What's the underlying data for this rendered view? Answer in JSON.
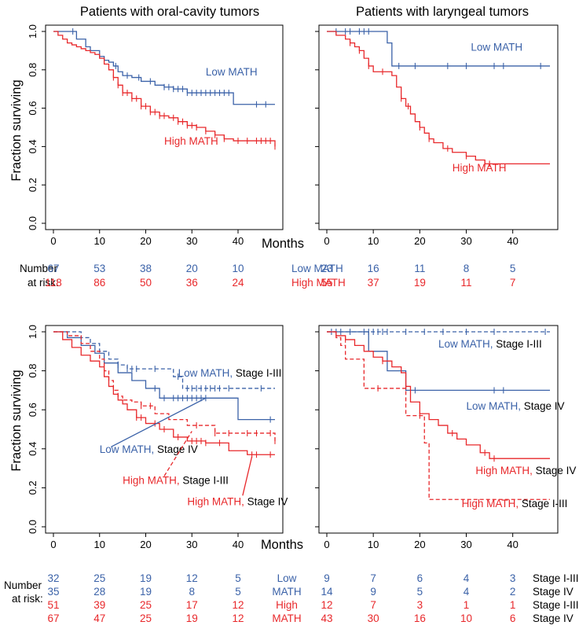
{
  "colors": {
    "low": "#3b62a8",
    "high": "#e8282b",
    "axis": "#000000"
  },
  "labels": {
    "ylabel": "Fraction surviving",
    "xlabel": "Months",
    "number_at_risk": [
      "Number",
      "at risk:"
    ],
    "low_math": "Low MATH",
    "high_math": "High MATH",
    "low_split": [
      "Low",
      "MATH"
    ],
    "high_split": [
      "High",
      "MATH"
    ],
    "stage_1_3": "Stage I-III",
    "stage_4": "Stage IV"
  },
  "x_ticks": [
    0,
    10,
    20,
    30,
    40
  ],
  "y_ticks": [
    "0.0",
    "0.2",
    "0.4",
    "0.6",
    "0.8",
    "1.0"
  ],
  "chart_data": [
    {
      "type": "line",
      "title": "Patients with oral-cavity tumors",
      "xlabel": "Months",
      "ylabel": "Fraction surviving",
      "xlim": [
        0,
        48
      ],
      "ylim": [
        0,
        1
      ],
      "series": [
        {
          "name": "Low MATH",
          "group": "low",
          "dashed": false,
          "x": [
            0,
            4,
            5,
            7,
            8,
            10,
            11,
            12,
            13,
            14,
            15,
            17,
            19,
            22,
            24,
            26,
            29,
            32,
            36,
            39,
            48
          ],
          "y": [
            1.0,
            1.0,
            0.96,
            0.92,
            0.9,
            0.87,
            0.85,
            0.84,
            0.82,
            0.79,
            0.77,
            0.76,
            0.74,
            0.72,
            0.71,
            0.7,
            0.68,
            0.68,
            0.68,
            0.62,
            0.62
          ],
          "censor_x": [
            4.2,
            13.5,
            16,
            18.5,
            21,
            24,
            25,
            26,
            27,
            28,
            29,
            30,
            31,
            32,
            33,
            34,
            35,
            36,
            37,
            38,
            44,
            46
          ]
        },
        {
          "name": "High MATH",
          "group": "high",
          "dashed": false,
          "x": [
            0,
            1,
            2,
            3,
            4,
            5,
            6,
            7,
            8,
            9,
            10,
            11,
            12,
            13,
            14,
            15,
            17,
            19,
            21,
            23,
            25,
            27,
            29,
            31,
            33,
            35,
            37,
            39,
            48
          ],
          "y": [
            1.0,
            0.98,
            0.96,
            0.94,
            0.93,
            0.92,
            0.91,
            0.9,
            0.89,
            0.88,
            0.86,
            0.83,
            0.8,
            0.76,
            0.72,
            0.68,
            0.65,
            0.61,
            0.58,
            0.56,
            0.55,
            0.53,
            0.51,
            0.5,
            0.48,
            0.46,
            0.44,
            0.43,
            0.4
          ],
          "censor_x": [
            13,
            14,
            15,
            16,
            17,
            18,
            19,
            20,
            21,
            22,
            23,
            24,
            26,
            27,
            28,
            29,
            30,
            31,
            33,
            35,
            37,
            40,
            42,
            44,
            45,
            46,
            47,
            48
          ]
        }
      ],
      "annotations": [
        {
          "text": "Low MATH",
          "group": "low",
          "x": 33,
          "y": 0.77
        },
        {
          "text": "High MATH",
          "group": "high",
          "x": 24,
          "y": 0.41
        }
      ],
      "at_risk": {
        "x": [
          0,
          10,
          20,
          30,
          40
        ],
        "rows": [
          {
            "label": "Low MATH",
            "group": "low",
            "values": [
              "67",
              "53",
              "38",
              "20",
              "10"
            ]
          },
          {
            "label": "High MATH",
            "group": "high",
            "values": [
              "118",
              "86",
              "50",
              "36",
              "24"
            ]
          }
        ]
      }
    },
    {
      "type": "line",
      "title": "Patients with laryngeal tumors",
      "xlabel": "Months",
      "ylabel": "Fraction surviving",
      "xlim": [
        0,
        48
      ],
      "ylim": [
        0,
        1
      ],
      "series": [
        {
          "name": "Low MATH",
          "group": "low",
          "dashed": false,
          "x": [
            0,
            10,
            13,
            14,
            48
          ],
          "y": [
            1.0,
            1.0,
            0.94,
            0.82,
            0.82
          ],
          "censor_x": [
            2,
            4,
            5,
            7,
            8,
            9,
            15.5,
            19,
            26,
            30,
            36,
            38,
            46
          ]
        },
        {
          "name": "High MATH",
          "group": "high",
          "dashed": false,
          "x": [
            0,
            2,
            4,
            5,
            6,
            7,
            8,
            9,
            10,
            14,
            15,
            16,
            17,
            18,
            19,
            20,
            21,
            22,
            23,
            25,
            27,
            30,
            32,
            34,
            48
          ],
          "y": [
            1.0,
            0.98,
            0.96,
            0.94,
            0.92,
            0.9,
            0.86,
            0.82,
            0.79,
            0.77,
            0.71,
            0.65,
            0.61,
            0.57,
            0.53,
            0.5,
            0.47,
            0.44,
            0.42,
            0.39,
            0.37,
            0.35,
            0.33,
            0.31,
            0.31
          ],
          "censor_x": [
            5,
            7,
            9,
            12,
            16,
            17.5,
            20,
            22,
            26,
            30,
            34,
            35
          ]
        }
      ],
      "annotations": [
        {
          "text": "Low MATH",
          "group": "low",
          "x": 31,
          "y": 0.9
        },
        {
          "text": "High MATH",
          "group": "high",
          "x": 27,
          "y": 0.27
        }
      ],
      "at_risk": {
        "x": [
          0,
          10,
          20,
          30,
          40
        ],
        "rows": [
          {
            "label": "",
            "group": "low",
            "values": [
              "23",
              "16",
              "11",
              "8",
              "5"
            ]
          },
          {
            "label": "",
            "group": "high",
            "values": [
              "55",
              "37",
              "19",
              "11",
              "7"
            ]
          }
        ]
      }
    },
    {
      "type": "line",
      "title": "",
      "xlabel": "Months",
      "ylabel": "Fraction surviving",
      "xlim": [
        0,
        48
      ],
      "ylim": [
        0,
        1
      ],
      "series": [
        {
          "name": "Low MATH, Stage I-III",
          "group": "low",
          "dashed": true,
          "x": [
            0,
            4,
            6,
            8,
            10,
            12,
            14,
            16,
            19,
            22,
            26,
            28,
            48
          ],
          "y": [
            1.0,
            1.0,
            0.97,
            0.94,
            0.9,
            0.86,
            0.83,
            0.81,
            0.81,
            0.81,
            0.77,
            0.71,
            0.71
          ],
          "censor_x": [
            14,
            16,
            17,
            18,
            22,
            27,
            29,
            30,
            31,
            32,
            33,
            34,
            35,
            36,
            38,
            45
          ]
        },
        {
          "name": "Low MATH, Stage IV",
          "group": "low",
          "dashed": false,
          "x": [
            0,
            3,
            6,
            9,
            11,
            14,
            17,
            20,
            23,
            40,
            48
          ],
          "y": [
            1.0,
            0.97,
            0.93,
            0.89,
            0.84,
            0.79,
            0.75,
            0.71,
            0.66,
            0.55,
            0.55
          ],
          "censor_x": [
            22,
            24,
            26,
            27,
            28,
            29,
            30,
            31,
            32,
            33,
            47
          ]
        },
        {
          "name": "High MATH, Stage I-III",
          "group": "high",
          "dashed": true,
          "x": [
            0,
            3,
            6,
            8,
            10,
            11,
            12,
            13,
            14,
            15,
            17,
            19,
            22,
            25,
            29,
            35,
            48
          ],
          "y": [
            1.0,
            0.98,
            0.94,
            0.9,
            0.86,
            0.8,
            0.75,
            0.7,
            0.67,
            0.65,
            0.64,
            0.62,
            0.58,
            0.55,
            0.52,
            0.48,
            0.44
          ],
          "censor_x": [
            19,
            21,
            31,
            35,
            38,
            42,
            44,
            47,
            48
          ]
        },
        {
          "name": "High MATH, Stage IV",
          "group": "high",
          "dashed": false,
          "x": [
            0,
            2,
            4,
            6,
            8,
            10,
            11,
            12,
            13,
            14,
            15,
            16,
            18,
            20,
            23,
            26,
            29,
            33,
            38,
            42,
            48
          ],
          "y": [
            1.0,
            0.96,
            0.92,
            0.88,
            0.85,
            0.82,
            0.77,
            0.72,
            0.68,
            0.65,
            0.63,
            0.6,
            0.56,
            0.53,
            0.5,
            0.46,
            0.44,
            0.43,
            0.39,
            0.37,
            0.37
          ],
          "censor_x": [
            18,
            19,
            22,
            24,
            27,
            30,
            31,
            32,
            33,
            36,
            43,
            44,
            47
          ]
        }
      ],
      "annotations": [
        {
          "text": "Low MATH, ",
          "tail": "Stage I-III",
          "group": "low",
          "x": 27,
          "y": 0.77
        },
        {
          "text": "Low MATH, ",
          "tail": "Stage IV",
          "group": "low",
          "x": 10,
          "y": 0.38
        },
        {
          "text": "High MATH, ",
          "tail": "Stage I-III",
          "group": "high",
          "x": 15,
          "y": 0.22
        },
        {
          "text": "High MATH, ",
          "tail": "Stage IV",
          "group": "high",
          "x": 29,
          "y": 0.11
        }
      ],
      "at_risk": {
        "x": [
          0,
          10,
          20,
          30,
          40
        ],
        "rows": [
          {
            "label": "",
            "group": "low",
            "values": [
              "32",
              "25",
              "19",
              "12",
              "5"
            ]
          },
          {
            "label": "",
            "group": "low",
            "values": [
              "35",
              "28",
              "19",
              "8",
              "5"
            ]
          },
          {
            "label": "",
            "group": "high",
            "values": [
              "51",
              "39",
              "25",
              "17",
              "12"
            ]
          },
          {
            "label": "",
            "group": "high",
            "values": [
              "67",
              "47",
              "25",
              "19",
              "12"
            ]
          }
        ]
      }
    },
    {
      "type": "line",
      "title": "",
      "xlabel": "Months",
      "ylabel": "Fraction surviving",
      "xlim": [
        0,
        48
      ],
      "ylim": [
        0,
        1
      ],
      "series": [
        {
          "name": "Low MATH, Stage I-III",
          "group": "low",
          "dashed": true,
          "x": [
            0,
            48
          ],
          "y": [
            1.0,
            1.0
          ],
          "censor_x": [
            1,
            3,
            5,
            8,
            9,
            10,
            11,
            12,
            13,
            17,
            21,
            25,
            30,
            36,
            47
          ]
        },
        {
          "name": "Low MATH, Stage IV",
          "group": "low",
          "dashed": false,
          "x": [
            0,
            9,
            13,
            17,
            48
          ],
          "y": [
            1.0,
            0.9,
            0.8,
            0.7,
            0.7
          ],
          "censor_x": [
            2,
            19,
            36,
            38
          ]
        },
        {
          "name": "High MATH, Stage I-III",
          "group": "high",
          "dashed": true,
          "x": [
            0,
            2,
            3,
            4,
            8,
            13,
            16,
            17,
            21,
            22,
            48
          ],
          "y": [
            1.0,
            0.97,
            0.93,
            0.86,
            0.71,
            0.71,
            0.71,
            0.57,
            0.43,
            0.14,
            0.14
          ],
          "censor_x": [
            11,
            20
          ]
        },
        {
          "name": "High MATH, Stage IV",
          "group": "high",
          "dashed": false,
          "x": [
            0,
            2,
            4,
            6,
            8,
            10,
            12,
            14,
            16,
            17,
            18,
            20,
            22,
            24,
            26,
            28,
            30,
            33,
            35,
            48
          ],
          "y": [
            1.0,
            0.98,
            0.96,
            0.93,
            0.9,
            0.87,
            0.85,
            0.82,
            0.79,
            0.72,
            0.64,
            0.58,
            0.55,
            0.52,
            0.48,
            0.45,
            0.42,
            0.38,
            0.35,
            0.35
          ],
          "censor_x": [
            4,
            12,
            17,
            27,
            34,
            36
          ]
        }
      ],
      "annotations": [
        {
          "text": "Low MATH, ",
          "tail": "Stage I-III",
          "group": "low",
          "x": 24,
          "y": 0.92
        },
        {
          "text": "Low MATH, ",
          "tail": "Stage IV",
          "group": "low",
          "x": 30,
          "y": 0.6
        },
        {
          "text": "High MATH, ",
          "tail": "Stage IV",
          "group": "high",
          "x": 32,
          "y": 0.27
        },
        {
          "text": "High MATH, ",
          "tail": "Stage I-III",
          "group": "high",
          "x": 29,
          "y": 0.1
        }
      ],
      "at_risk": {
        "x": [
          0,
          10,
          20,
          30,
          40
        ],
        "rows": [
          {
            "label": "Stage I-III",
            "group": "low",
            "values": [
              "9",
              "7",
              "6",
              "4",
              "3"
            ]
          },
          {
            "label": "Stage IV",
            "group": "low",
            "values": [
              "14",
              "9",
              "5",
              "4",
              "2"
            ]
          },
          {
            "label": "Stage I-III",
            "group": "high",
            "values": [
              "12",
              "7",
              "3",
              "1",
              "1"
            ]
          },
          {
            "label": "Stage IV",
            "group": "high",
            "values": [
              "43",
              "30",
              "16",
              "10",
              "6"
            ]
          }
        ]
      }
    }
  ]
}
